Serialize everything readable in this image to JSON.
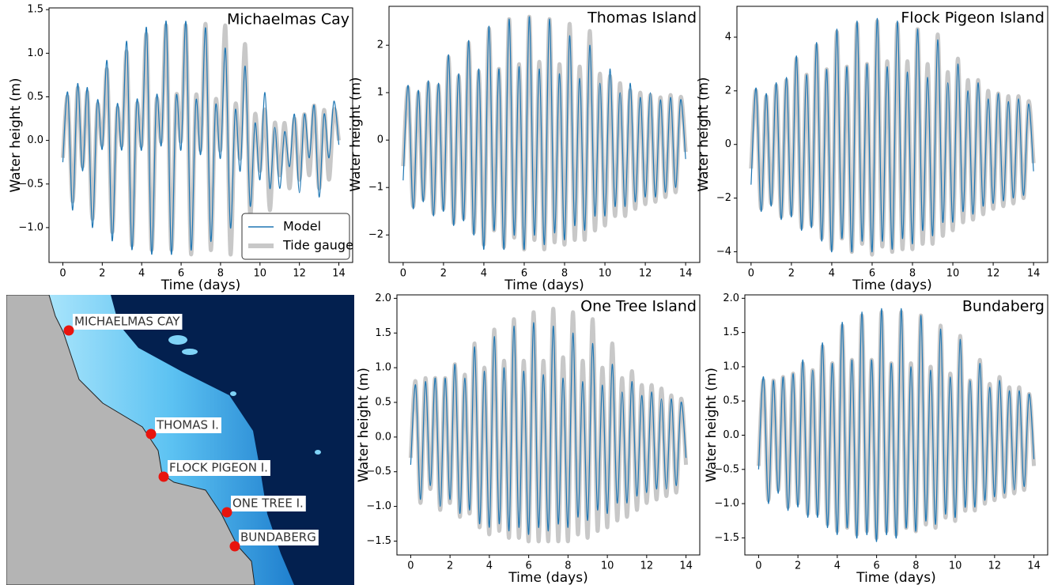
{
  "chart_data": [
    {
      "type": "line",
      "title": "Michaelmas Cay",
      "xlabel": "Time (days)",
      "ylabel": "Water height (m)",
      "x": [
        0,
        0.25,
        0.5,
        0.75,
        1,
        1.25,
        1.5,
        1.75,
        2,
        2.25,
        2.5,
        2.75,
        3,
        3.25,
        3.5,
        3.75,
        4,
        4.25,
        4.5,
        4.75,
        5,
        5.25,
        5.5,
        5.75,
        6,
        6.25,
        6.5,
        6.75,
        7,
        7.25,
        7.5,
        7.75,
        8,
        8.25,
        8.5,
        8.75,
        9,
        9.25,
        9.5,
        9.75,
        10,
        10.25,
        10.5,
        10.75,
        11,
        11.25,
        11.5,
        11.75,
        12,
        12.25,
        12.5,
        12.75,
        13,
        13.25,
        13.5,
        13.75,
        14
      ],
      "series": [
        {
          "name": "Tide gauge",
          "color": "#c8c8c8",
          "width": 5,
          "values": [
            -0.2,
            0.5,
            -0.7,
            0.6,
            -0.3,
            0.55,
            -0.9,
            0.4,
            -0.05,
            0.8,
            -1.05,
            0.35,
            -0.05,
            1.0,
            -1.2,
            0.4,
            -0.05,
            1.2,
            -1.25,
            0.45,
            0.0,
            1.3,
            -1.25,
            0.5,
            0.0,
            1.3,
            -1.3,
            0.5,
            -0.1,
            1.32,
            -1.25,
            0.45,
            -0.1,
            1.3,
            -1.3,
            0.4,
            -0.2,
            1.1,
            -0.85,
            0.3,
            -0.35,
            0.35,
            -0.8,
            0.2,
            -0.4,
            0.2,
            -0.55,
            0.25,
            -0.45,
            0.3,
            -0.4,
            0.4,
            -0.55,
            0.35,
            -0.45,
            0.35,
            0.0
          ]
        },
        {
          "name": "Model",
          "color": "#1f77b4",
          "width": 1.2,
          "values": [
            -0.25,
            0.55,
            -0.8,
            0.65,
            -0.35,
            0.6,
            -1.0,
            0.45,
            -0.1,
            0.9,
            -1.15,
            0.4,
            -0.1,
            1.12,
            -1.25,
            0.45,
            -0.1,
            1.28,
            -1.3,
            0.5,
            -0.05,
            1.35,
            -1.3,
            0.5,
            -0.1,
            1.35,
            -1.25,
            0.45,
            -0.15,
            1.28,
            -1.15,
            0.4,
            -0.2,
            1.05,
            -1.0,
            0.35,
            -0.35,
            0.85,
            -0.75,
            0.2,
            -0.45,
            0.55,
            -0.55,
            0.15,
            -0.55,
            0.1,
            -0.3,
            0.3,
            -0.6,
            0.3,
            -0.2,
            0.4,
            -0.65,
            0.3,
            -0.2,
            0.45,
            -0.05
          ]
        }
      ],
      "legend": "lower right",
      "xlim": [
        -0.7,
        14.7
      ],
      "xticks": [
        0,
        2,
        4,
        6,
        8,
        10,
        12,
        14
      ],
      "ylim": [
        -1.4,
        1.52
      ],
      "yticks": [
        {
          "value": -1.0,
          "label": "−1.0"
        },
        {
          "value": -0.5,
          "label": "−0.5"
        },
        {
          "value": 0,
          "label": "0.0"
        },
        0.5,
        {
          "value": 1,
          "label": "1.0"
        },
        1.5
      ]
    },
    {
      "type": "line",
      "title": "Thomas Island",
      "xlabel": "Time (days)",
      "ylabel": "Water height (m)",
      "x": [
        0,
        0.25,
        0.5,
        0.75,
        1,
        1.25,
        1.5,
        1.75,
        2,
        2.25,
        2.5,
        2.75,
        3,
        3.25,
        3.5,
        3.75,
        4,
        4.25,
        4.5,
        4.75,
        5,
        5.25,
        5.5,
        5.75,
        6,
        6.25,
        6.5,
        6.75,
        7,
        7.25,
        7.5,
        7.75,
        8,
        8.25,
        8.5,
        8.75,
        9,
        9.25,
        9.5,
        9.75,
        10,
        10.25,
        10.5,
        10.75,
        11,
        11.25,
        11.5,
        11.75,
        12,
        12.25,
        12.5,
        12.75,
        13,
        13.25,
        13.5,
        13.75,
        14
      ],
      "series": [
        {
          "color": "#c8c8c8",
          "width": 5,
          "values": [
            -0.55,
            1.1,
            -1.4,
            1.0,
            -1.25,
            1.2,
            -1.55,
            1.15,
            -1.45,
            1.75,
            -1.75,
            1.35,
            -1.65,
            2.05,
            -1.95,
            1.45,
            -2.2,
            2.35,
            -1.9,
            1.5,
            -2.25,
            2.55,
            -2.05,
            1.6,
            -2.3,
            2.6,
            -2.1,
            1.65,
            -2.3,
            2.55,
            -2.15,
            1.6,
            -2.2,
            2.45,
            -2.1,
            1.55,
            -2.1,
            2.3,
            -1.9,
            1.4,
            -1.8,
            1.35,
            -1.6,
            1.2,
            -1.6,
            1.05,
            -1.45,
            1.0,
            -1.35,
            0.95,
            -1.3,
            0.9,
            -1.2,
            0.95,
            -1.1,
            0.9,
            -0.25
          ]
        },
        {
          "color": "#1f77b4",
          "width": 1.2,
          "values": [
            -0.85,
            1.15,
            -1.45,
            1.05,
            -1.3,
            1.25,
            -1.6,
            1.2,
            -1.5,
            1.8,
            -1.8,
            1.4,
            -1.7,
            2.1,
            -2.0,
            1.5,
            -2.3,
            2.4,
            -1.9,
            1.5,
            -2.3,
            2.55,
            -2.0,
            1.55,
            -2.3,
            2.6,
            -2.0,
            1.5,
            -2.2,
            2.55,
            -1.95,
            1.4,
            -2.1,
            2.2,
            -1.8,
            1.3,
            -1.9,
            2.0,
            -1.6,
            1.2,
            -1.6,
            1.5,
            -1.4,
            1.0,
            -1.4,
            1.2,
            -1.3,
            0.9,
            -1.2,
            1.0,
            -1.2,
            0.85,
            -1.1,
            0.9,
            -1.0,
            0.85,
            -0.4
          ]
        }
      ],
      "xlim": [
        -0.7,
        14.7
      ],
      "xticks": [
        0,
        2,
        4,
        6,
        8,
        10,
        12,
        14
      ],
      "ylim": [
        -2.58,
        2.82
      ],
      "yticks": [
        {
          "value": -2,
          "label": "−2"
        },
        {
          "value": -1,
          "label": "−1"
        },
        0,
        1,
        2
      ]
    },
    {
      "type": "line",
      "title": "Flock Pigeon Island",
      "xlabel": "Time (days)",
      "ylabel": "Water height (m)",
      "x": [
        0,
        0.25,
        0.5,
        0.75,
        1,
        1.25,
        1.5,
        1.75,
        2,
        2.25,
        2.5,
        2.75,
        3,
        3.25,
        3.5,
        3.75,
        4,
        4.25,
        4.5,
        4.75,
        5,
        5.25,
        5.5,
        5.75,
        6,
        6.25,
        6.5,
        6.75,
        7,
        7.25,
        7.5,
        7.75,
        8,
        8.25,
        8.5,
        8.75,
        9,
        9.25,
        9.5,
        9.75,
        10,
        10.25,
        10.5,
        10.75,
        11,
        11.25,
        11.5,
        11.75,
        12,
        12.25,
        12.5,
        12.75,
        13,
        13.25,
        13.5,
        13.75,
        14
      ],
      "series": [
        {
          "color": "#c8c8c8",
          "width": 5,
          "values": [
            -0.9,
            2.0,
            -2.4,
            1.8,
            -2.2,
            2.2,
            -2.7,
            2.4,
            -2.6,
            3.2,
            -3.1,
            2.6,
            -3.0,
            3.7,
            -3.5,
            2.8,
            -3.9,
            4.2,
            -3.5,
            2.9,
            -4.0,
            4.5,
            -3.7,
            3.0,
            -4.1,
            4.6,
            -3.8,
            3.1,
            -4.0,
            4.5,
            -3.9,
            3.1,
            -3.9,
            4.3,
            -3.7,
            3.0,
            -3.7,
            4.1,
            -3.4,
            2.7,
            -3.2,
            3.2,
            -2.9,
            2.4,
            -2.8,
            2.4,
            -2.6,
            2.0,
            -2.4,
            1.9,
            -2.3,
            1.8,
            -2.2,
            1.8,
            -2.0,
            1.6,
            -0.7
          ]
        },
        {
          "color": "#1f77b4",
          "width": 1.2,
          "values": [
            -1.5,
            2.1,
            -2.5,
            1.9,
            -2.3,
            2.3,
            -2.8,
            2.5,
            -2.7,
            3.3,
            -3.2,
            2.6,
            -3.1,
            3.8,
            -3.6,
            2.8,
            -4.0,
            4.3,
            -3.5,
            2.9,
            -4.0,
            4.6,
            -3.6,
            3.0,
            -4.0,
            4.7,
            -3.6,
            2.9,
            -3.9,
            4.6,
            -3.5,
            2.7,
            -3.7,
            4.3,
            -3.2,
            2.5,
            -3.4,
            3.9,
            -2.9,
            2.3,
            -2.9,
            3.0,
            -2.5,
            2.0,
            -2.6,
            2.3,
            -2.3,
            1.7,
            -2.2,
            1.9,
            -2.1,
            1.6,
            -2.0,
            1.7,
            -1.9,
            1.5,
            -1.0
          ]
        }
      ],
      "xlim": [
        -0.7,
        14.7
      ],
      "xticks": [
        0,
        2,
        4,
        6,
        8,
        10,
        12,
        14
      ],
      "ylim": [
        -4.4,
        5.15
      ],
      "yticks": [
        {
          "value": -4,
          "label": "−4"
        },
        {
          "value": -2,
          "label": "−2"
        },
        0,
        2,
        4
      ]
    },
    {
      "type": "line",
      "title": "One Tree Island",
      "xlabel": "Time (days)",
      "ylabel": "Water height (m)",
      "x": [
        0,
        0.25,
        0.5,
        0.75,
        1,
        1.25,
        1.5,
        1.75,
        2,
        2.25,
        2.5,
        2.75,
        3,
        3.25,
        3.5,
        3.75,
        4,
        4.25,
        4.5,
        4.75,
        5,
        5.25,
        5.5,
        5.75,
        6,
        6.25,
        6.5,
        6.75,
        7,
        7.25,
        7.5,
        7.75,
        8,
        8.25,
        8.5,
        8.75,
        9,
        9.25,
        9.5,
        9.75,
        10,
        10.25,
        10.5,
        10.75,
        11,
        11.25,
        11.5,
        11.75,
        12,
        12.25,
        12.5,
        12.75,
        13,
        13.25,
        13.5,
        13.75,
        14
      ],
      "series": [
        {
          "color": "#c8c8c8",
          "width": 5,
          "values": [
            -0.3,
            0.8,
            -0.95,
            0.85,
            -0.75,
            0.85,
            -1.05,
            0.85,
            -0.95,
            1.05,
            -1.15,
            0.9,
            -1.1,
            1.35,
            -1.3,
            1.0,
            -1.4,
            1.55,
            -1.35,
            1.1,
            -1.45,
            1.7,
            -1.45,
            1.1,
            -1.5,
            1.8,
            -1.5,
            1.1,
            -1.5,
            1.85,
            -1.5,
            1.15,
            -1.5,
            1.8,
            -1.4,
            1.1,
            -1.45,
            1.7,
            -1.35,
            1.0,
            -1.3,
            1.35,
            -1.2,
            0.85,
            -1.15,
            0.95,
            -1.05,
            0.75,
            -0.95,
            0.75,
            -0.9,
            0.7,
            -0.85,
            0.6,
            -0.8,
            0.55,
            -0.4
          ]
        },
        {
          "color": "#1f77b4",
          "width": 1.2,
          "values": [
            -0.4,
            0.75,
            -0.9,
            0.8,
            -0.7,
            0.85,
            -1.0,
            0.85,
            -0.9,
            1.05,
            -1.1,
            0.85,
            -1.05,
            1.3,
            -1.25,
            0.95,
            -1.3,
            1.45,
            -1.25,
            1.0,
            -1.35,
            1.6,
            -1.3,
            0.95,
            -1.4,
            1.65,
            -1.3,
            0.9,
            -1.35,
            1.6,
            -1.25,
            0.85,
            -1.3,
            1.5,
            -1.15,
            0.8,
            -1.2,
            1.35,
            -1.05,
            0.75,
            -1.1,
            1.05,
            -0.95,
            0.65,
            -0.95,
            0.8,
            -0.85,
            0.6,
            -0.8,
            0.65,
            -0.75,
            0.55,
            -0.75,
            0.55,
            -0.7,
            0.5,
            -0.3
          ]
        }
      ],
      "xlim": [
        -0.7,
        14.7
      ],
      "xticks": [
        0,
        2,
        4,
        6,
        8,
        10,
        12,
        14
      ],
      "ylim": [
        -1.7,
        2.05
      ],
      "yticks": [
        {
          "value": -1.5,
          "label": "−1.5"
        },
        {
          "value": -1,
          "label": "−1.0"
        },
        {
          "value": -0.5,
          "label": "−0.5"
        },
        {
          "value": 0,
          "label": "0.0"
        },
        0.5,
        {
          "value": 1,
          "label": "1.0"
        },
        1.5,
        {
          "value": 2,
          "label": "2.0"
        }
      ]
    },
    {
      "type": "line",
      "title": "Bundaberg",
      "xlabel": "Time (days)",
      "ylabel": "Water height (m)",
      "x": [
        0,
        0.25,
        0.5,
        0.75,
        1,
        1.25,
        1.5,
        1.75,
        2,
        2.25,
        2.5,
        2.75,
        3,
        3.25,
        3.5,
        3.75,
        4,
        4.25,
        4.5,
        4.75,
        5,
        5.25,
        5.5,
        5.75,
        6,
        6.25,
        6.5,
        6.75,
        7,
        7.25,
        7.5,
        7.75,
        8,
        8.25,
        8.5,
        8.75,
        9,
        9.25,
        9.5,
        9.75,
        10,
        10.25,
        10.5,
        10.75,
        11,
        11.25,
        11.5,
        11.75,
        12,
        12.25,
        12.5,
        12.75,
        13,
        13.25,
        13.5,
        13.75,
        14
      ],
      "series": [
        {
          "color": "#c8c8c8",
          "width": 5,
          "values": [
            -0.45,
            0.8,
            -0.95,
            0.8,
            -0.8,
            0.85,
            -1.05,
            0.9,
            -1.0,
            1.05,
            -1.15,
            0.95,
            -1.15,
            1.3,
            -1.3,
            1.05,
            -1.4,
            1.6,
            -1.35,
            1.1,
            -1.45,
            1.75,
            -1.4,
            1.1,
            -1.5,
            1.8,
            -1.4,
            1.05,
            -1.45,
            1.8,
            -1.35,
            1.05,
            -1.4,
            1.75,
            -1.3,
            1.0,
            -1.35,
            1.6,
            -1.2,
            0.9,
            -1.25,
            1.45,
            -1.1,
            0.8,
            -1.1,
            1.1,
            -1.0,
            0.75,
            -0.95,
            0.85,
            -0.9,
            0.7,
            -0.85,
            0.7,
            -0.8,
            0.6,
            -0.45
          ]
        },
        {
          "color": "#1f77b4",
          "width": 1.2,
          "values": [
            -0.5,
            0.85,
            -1.0,
            0.8,
            -0.85,
            0.85,
            -1.1,
            0.9,
            -1.05,
            1.1,
            -1.2,
            0.95,
            -1.2,
            1.35,
            -1.35,
            1.05,
            -1.45,
            1.65,
            -1.35,
            1.1,
            -1.5,
            1.8,
            -1.45,
            1.1,
            -1.55,
            1.85,
            -1.45,
            1.05,
            -1.5,
            1.85,
            -1.35,
            1.0,
            -1.4,
            1.75,
            -1.25,
            0.95,
            -1.3,
            1.55,
            -1.15,
            0.85,
            -1.2,
            1.4,
            -1.05,
            0.8,
            -1.05,
            1.05,
            -0.95,
            0.7,
            -0.9,
            0.8,
            -0.85,
            0.65,
            -0.8,
            0.65,
            -0.75,
            0.6,
            -0.35
          ]
        }
      ],
      "xlim": [
        -0.7,
        14.7
      ],
      "xticks": [
        0,
        2,
        4,
        6,
        8,
        10,
        12,
        14
      ],
      "ylim": [
        -1.75,
        2.05
      ],
      "yticks": [
        {
          "value": -1.5,
          "label": "−1.5"
        },
        {
          "value": -1,
          "label": "−1.0"
        },
        {
          "value": -0.5,
          "label": "−0.5"
        },
        {
          "value": 0,
          "label": "0.0"
        },
        0.5,
        {
          "value": 1,
          "label": "1.0"
        },
        1.5,
        {
          "value": 2,
          "label": "2.0"
        }
      ]
    }
  ],
  "map": {
    "labels": [
      "MICHAELMAS CAY",
      "THOMAS I.",
      "FLOCK PIGEON I.",
      "ONE TREE I.",
      "BUNDABERG"
    ]
  }
}
